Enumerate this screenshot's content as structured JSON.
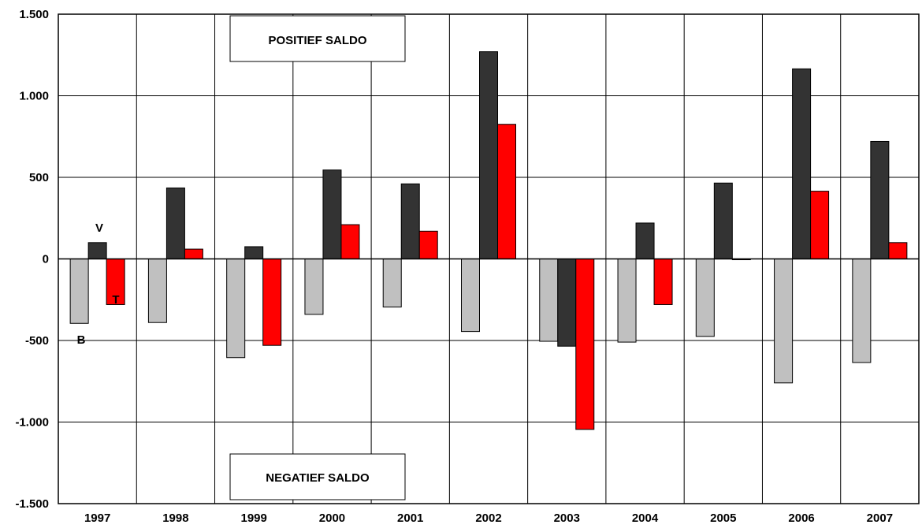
{
  "chart_data": {
    "type": "bar",
    "categories": [
      "1997",
      "1998",
      "1999",
      "2000",
      "2001",
      "2002",
      "2003",
      "2004",
      "2005",
      "2006",
      "2007"
    ],
    "series": [
      {
        "name": "B",
        "color": "#c0c0c0",
        "values": [
          -395,
          -390,
          -605,
          -340,
          -295,
          -445,
          -505,
          -510,
          -475,
          -760,
          -635
        ]
      },
      {
        "name": "V",
        "color": "#333333",
        "values": [
          100,
          435,
          75,
          545,
          460,
          1270,
          -535,
          220,
          465,
          1165,
          720
        ]
      },
      {
        "name": "T",
        "color": "#ff0000",
        "values": [
          -280,
          60,
          -530,
          210,
          170,
          825,
          -1045,
          -280,
          -5,
          415,
          100
        ]
      }
    ],
    "ylim": [
      -1500,
      1500
    ],
    "yticks": [
      1500,
      1000,
      500,
      0,
      -500,
      -1000,
      -1500
    ],
    "ytick_labels": [
      "1.500",
      "1.000",
      "500",
      "0",
      "-500",
      "-1.000",
      "-1.500"
    ],
    "grid": true,
    "annotations": {
      "positive": "POSITIEF SALDO",
      "negative": "NEGATIEF SALDO"
    },
    "series_labels": {
      "B": "B",
      "V": "V",
      "T": "T"
    }
  }
}
